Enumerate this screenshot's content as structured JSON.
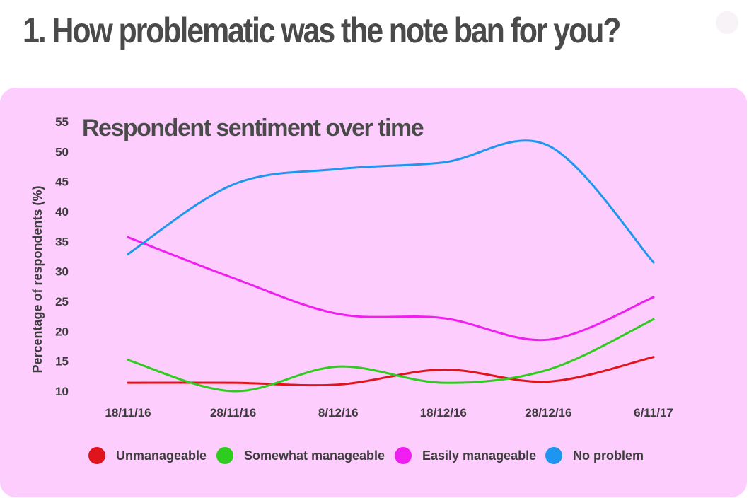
{
  "page": {
    "title": "1. How problematic was the note ban for you?"
  },
  "chart_data": {
    "type": "line",
    "title": "Respondent sentiment over time",
    "xlabel": "",
    "ylabel": "Percentage of respondents (%)",
    "categories": [
      "18/11/16",
      "28/11/16",
      "8/12/16",
      "18/12/16",
      "28/12/16",
      "6/11/17"
    ],
    "y_ticks": [
      10,
      15,
      20,
      25,
      30,
      35,
      40,
      45,
      50,
      55
    ],
    "ylim": [
      10,
      55
    ],
    "grid": false,
    "legend_position": "bottom",
    "series": [
      {
        "name": "Unmanageable",
        "color": "#e0141c",
        "values": [
          11.4,
          11.4,
          11.1,
          13.6,
          11.6,
          15.7
        ]
      },
      {
        "name": "Somewhat manageable",
        "color": "#2ecc1f",
        "values": [
          15.2,
          10.0,
          14.1,
          11.4,
          13.6,
          22.0
        ]
      },
      {
        "name": "Easily manageable",
        "color": "#f01ef0",
        "values": [
          35.7,
          28.9,
          22.9,
          22.2,
          18.6,
          25.7
        ]
      },
      {
        "name": "No problem",
        "color": "#1e96f0",
        "values": [
          32.9,
          44.5,
          47.1,
          48.2,
          51.0,
          31.5
        ]
      }
    ]
  }
}
